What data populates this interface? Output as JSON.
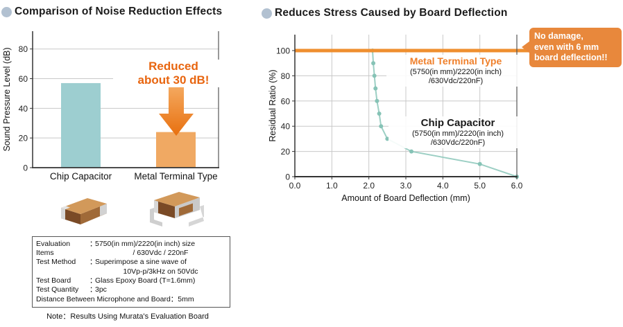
{
  "left_panel": {
    "title": "Comparison of Noise Reduction Effects",
    "annotation": {
      "line1": "Reduced",
      "line2": "about 30 dB!"
    },
    "eval_box": {
      "rows": [
        {
          "label": "Evaluation Items",
          "sep": "：",
          "lines": [
            "5750(in mm)/2220(in inch) size",
            "/ 630Vdc / 220nF"
          ]
        },
        {
          "label": "Test Method",
          "sep": "：",
          "lines": [
            "Superimpose a sine wave of",
            "10Vp-p/3kHz on 50Vdc"
          ]
        },
        {
          "label": "Test Board",
          "sep": "：",
          "lines": [
            "Glass Epoxy Board (T=1.6mm)"
          ]
        },
        {
          "label": "Test Quantity",
          "sep": "：",
          "lines": [
            "3pc"
          ]
        }
      ],
      "footer": "Distance Between Microphone and Board：5mm"
    },
    "note": "Note：Results Using Murata's Evaluation Board",
    "images": {
      "chip": "chip-capacitor-photo",
      "metal": "metal-terminal-type-photo"
    }
  },
  "right_panel": {
    "title": "Reduces Stress Caused by Board Deflection",
    "callout": {
      "line1": "No damage,",
      "line2": "even with 6 mm",
      "line3": "board deflection!!"
    },
    "series_labels": {
      "metal": {
        "name": "Metal Terminal Type",
        "spec1": "(5750(in mm)/2220(in inch)",
        "spec2": "/630Vdc/220nF)"
      },
      "chip": {
        "name": "Chip Capacitor",
        "spec1": "(5750(in mm)/2220(in inch)",
        "spec2": "/630Vdc/220nF)"
      }
    }
  },
  "colors": {
    "bullet": "#b2c1d1",
    "teal_bar": "#9dced0",
    "orange_bar": "#f0a963",
    "orange_accent_text": "#e8650f",
    "orange_line": "#ef8f2f",
    "callout_bg": "#e8883c",
    "teal_line": "#9ccfc4",
    "teal_marker": "#86c3b6",
    "grid": "#c8c8c8",
    "axis": "#333333"
  },
  "chart_data": [
    {
      "type": "bar",
      "title": "Comparison of Noise Reduction Effects",
      "categories": [
        "Chip Capacitor",
        "Metal Terminal Type"
      ],
      "values": [
        57,
        24
      ],
      "bar_colors": [
        "#9dced0",
        "#f0a963"
      ],
      "xlabel": "",
      "ylabel": "Sound Pressure Level (dB)",
      "yticks": [
        0,
        20,
        40,
        60,
        80
      ],
      "ylim": [
        0,
        92
      ],
      "grid": true,
      "annotation": "Reduced about 30 dB!"
    },
    {
      "type": "line",
      "title": "Reduces Stress Caused by Board Deflection",
      "xlabel": "Amount of Board Deflection (mm)",
      "ylabel": "Residual Ratio (%)",
      "xticks": [
        "0.0",
        "1.0",
        "2.0",
        "3.0",
        "4.0",
        "5.0",
        "6.0"
      ],
      "yticks": [
        0,
        20,
        40,
        60,
        80,
        100
      ],
      "xlim": [
        0,
        6
      ],
      "ylim": [
        0,
        100
      ],
      "grid": true,
      "series": [
        {
          "name": "Metal Terminal Type",
          "color": "#ef8f2f",
          "points": [
            [
              0,
              100
            ],
            [
              6,
              100
            ]
          ],
          "note": "flat line at 100%, extends to callout bubble"
        },
        {
          "name": "Chip Capacitor",
          "color": "#9ccfc4",
          "points": [
            [
              2.1,
              100
            ],
            [
              2.12,
              90
            ],
            [
              2.15,
              80
            ],
            [
              2.18,
              70
            ],
            [
              2.22,
              60
            ],
            [
              2.28,
              50
            ],
            [
              2.33,
              40
            ],
            [
              2.5,
              30
            ],
            [
              3.15,
              20
            ],
            [
              5.0,
              10
            ],
            [
              6.0,
              0
            ]
          ]
        }
      ]
    }
  ]
}
